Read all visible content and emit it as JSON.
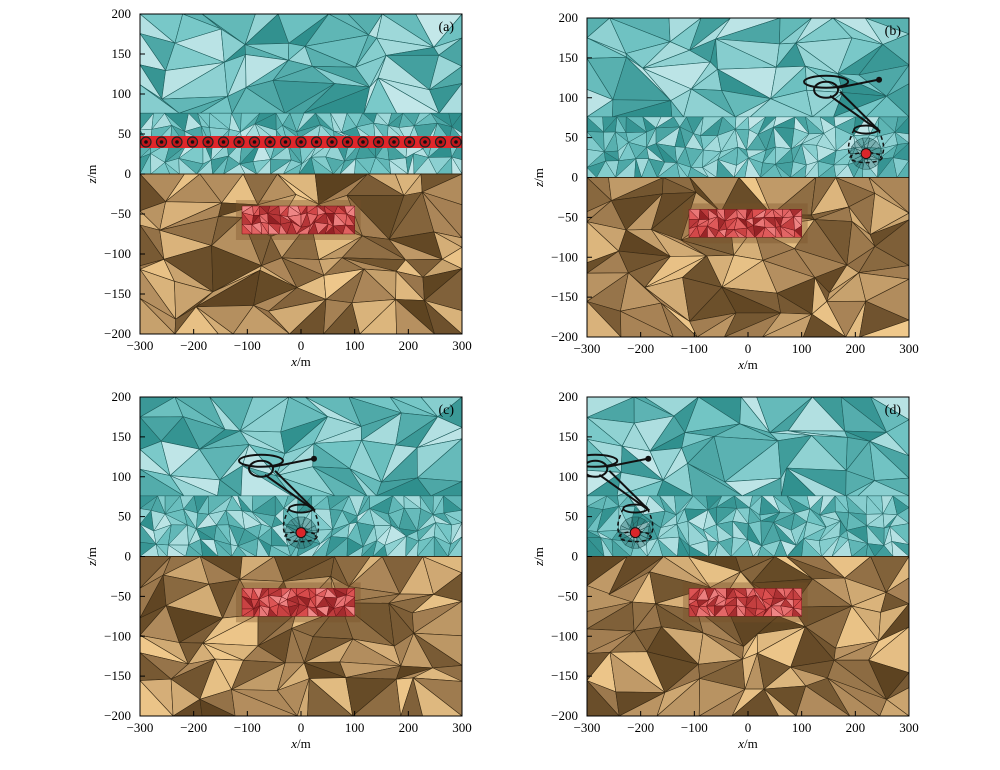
{
  "figure": {
    "panels": [
      {
        "label": "(a)",
        "variant": "full-line",
        "heli_x": null
      },
      {
        "label": "(b)",
        "variant": "heli",
        "heli_x": 220
      },
      {
        "label": "(c)",
        "variant": "heli",
        "heli_x": 0
      },
      {
        "label": "(d)",
        "variant": "heli",
        "heli_x": -210
      }
    ],
    "xlabel_italic": "x",
    "xlabel_unit": "/m",
    "ylabel_italic": "z",
    "ylabel_unit": "/m",
    "x_ticks": [
      "−300",
      "−200",
      "−100",
      "0",
      "100",
      "200",
      "300"
    ],
    "y_ticks": [
      "200",
      "150",
      "100",
      "50",
      "0",
      "−50",
      "−100",
      "−150",
      "−200"
    ],
    "x_range": [
      -300,
      300
    ],
    "z_range": [
      -200,
      200
    ],
    "ground_level": 0,
    "anomaly_x": [
      -110,
      100
    ],
    "anomaly_z": [
      -75,
      -40
    ],
    "survey_line_z": 40,
    "survey_points_count": 21,
    "colors": {
      "air_light": "#c3e7e9",
      "air_mid": "#74c6c6",
      "air_dark": "#2f8f8d",
      "ground_light": "#f0c98c",
      "ground_mid": "#a98457",
      "ground_dark": "#5c4220",
      "anomaly": "#d94c4c",
      "survey_line": "#e0262a"
    }
  }
}
